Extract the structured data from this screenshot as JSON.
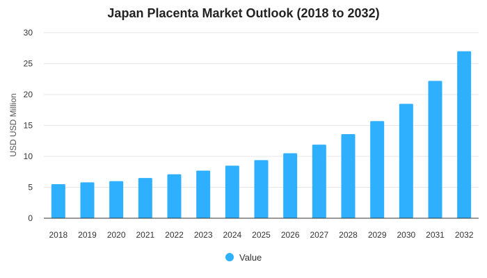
{
  "chart_data": {
    "type": "bar",
    "title": "Japan Placenta Market Outlook (2018 to 2032)",
    "xlabel": "",
    "ylabel": "USD USD Million",
    "ylim": [
      0,
      30
    ],
    "yticks": [
      0,
      5,
      10,
      15,
      20,
      25,
      30
    ],
    "grid": true,
    "legend_position": "bottom",
    "categories": [
      "2018",
      "2019",
      "2020",
      "2021",
      "2022",
      "2023",
      "2024",
      "2025",
      "2026",
      "2027",
      "2028",
      "2029",
      "2030",
      "2031",
      "2032"
    ],
    "series": [
      {
        "name": "Value",
        "color": "#2eb0ff",
        "values": [
          5.5,
          5.8,
          6.0,
          6.5,
          7.1,
          7.7,
          8.5,
          9.4,
          10.5,
          11.9,
          13.6,
          15.7,
          18.5,
          22.2,
          27.0
        ]
      }
    ]
  }
}
